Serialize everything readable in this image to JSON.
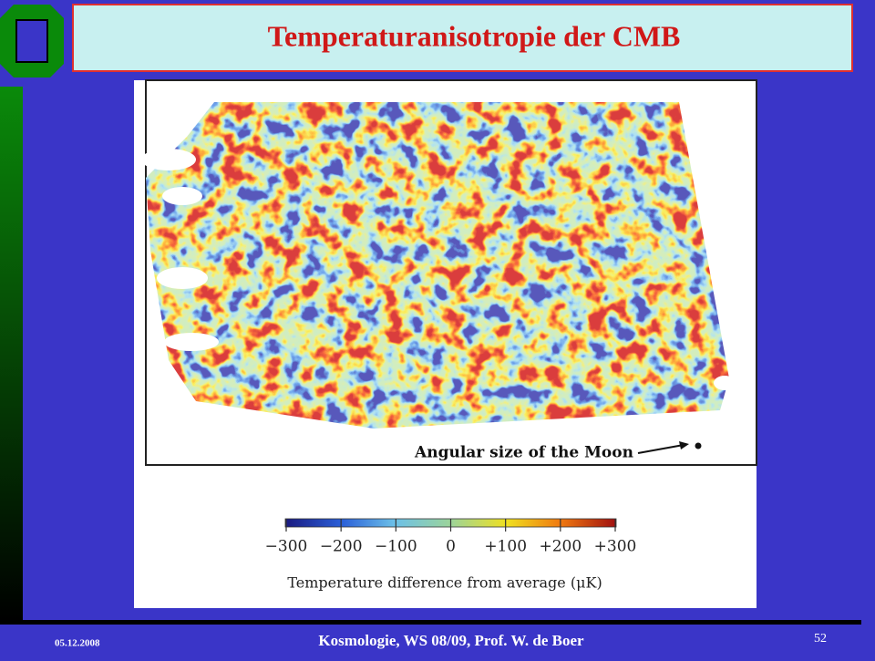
{
  "header": {
    "title": "Temperaturanisotropie der CMB"
  },
  "figure": {
    "annotation": "Angular size of the Moon",
    "colorbar": {
      "ticks": [
        "−300",
        "−200",
        "−100",
        "0",
        "+100",
        "+200",
        "+300"
      ],
      "label": "Temperature difference from average (μK)"
    }
  },
  "footer": {
    "date": "05.12.2008",
    "text": "Kosmologie,  WS 08/09,  Prof. W. de Boer",
    "page": "52"
  }
}
